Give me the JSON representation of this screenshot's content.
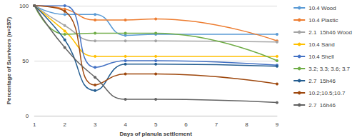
{
  "chart_data": {
    "type": "line",
    "x_label": "Days of planula settlement",
    "y_label": "Percentage of Survivors (n=257)",
    "x": [
      1,
      2,
      3,
      4,
      5,
      9
    ],
    "xlim": [
      1,
      9
    ],
    "xticks": [
      1,
      2,
      3,
      4,
      5,
      6,
      7,
      8,
      9
    ],
    "ylim": [
      0,
      100
    ],
    "yticks": [
      0,
      50,
      100
    ],
    "grid": true,
    "legend": "right",
    "marker": "circle",
    "line_style": "smooth",
    "series": [
      {
        "name": "10.4 Wood",
        "color": "#5B9BD5",
        "values": [
          100,
          92,
          92,
          73,
          74,
          74
        ]
      },
      {
        "name": "10.4 Plastic",
        "color": "#ED7D31",
        "values": [
          100,
          97,
          87,
          87,
          88,
          68
        ]
      },
      {
        "name": "2.1  15h46 Wood",
        "color": "#A5A5A5",
        "values": [
          100,
          82,
          68,
          68,
          68,
          67
        ]
      },
      {
        "name": "10.4 Sand",
        "color": "#FFC000",
        "values": [
          100,
          77,
          54,
          54,
          54,
          54
        ]
      },
      {
        "name": "10.4 Shell",
        "color": "#4472C4",
        "values": [
          100,
          100,
          44,
          50,
          50,
          46
        ]
      },
      {
        "name": "3.2; 3.3; 3.6; 3.7",
        "color": "#70AD47",
        "values": [
          100,
          74,
          75,
          75,
          75,
          50
        ]
      },
      {
        "name": "2.7  15h46",
        "color": "#255E91",
        "values": [
          100,
          69,
          23,
          47,
          47,
          45
        ]
      },
      {
        "name": "10.2;10.5;10.7",
        "color": "#9E480E",
        "values": [
          100,
          95,
          28,
          38,
          38,
          29
        ]
      },
      {
        "name": "2.7  16h46",
        "color": "#636363",
        "values": [
          100,
          62,
          35,
          15,
          15,
          12
        ]
      }
    ]
  }
}
